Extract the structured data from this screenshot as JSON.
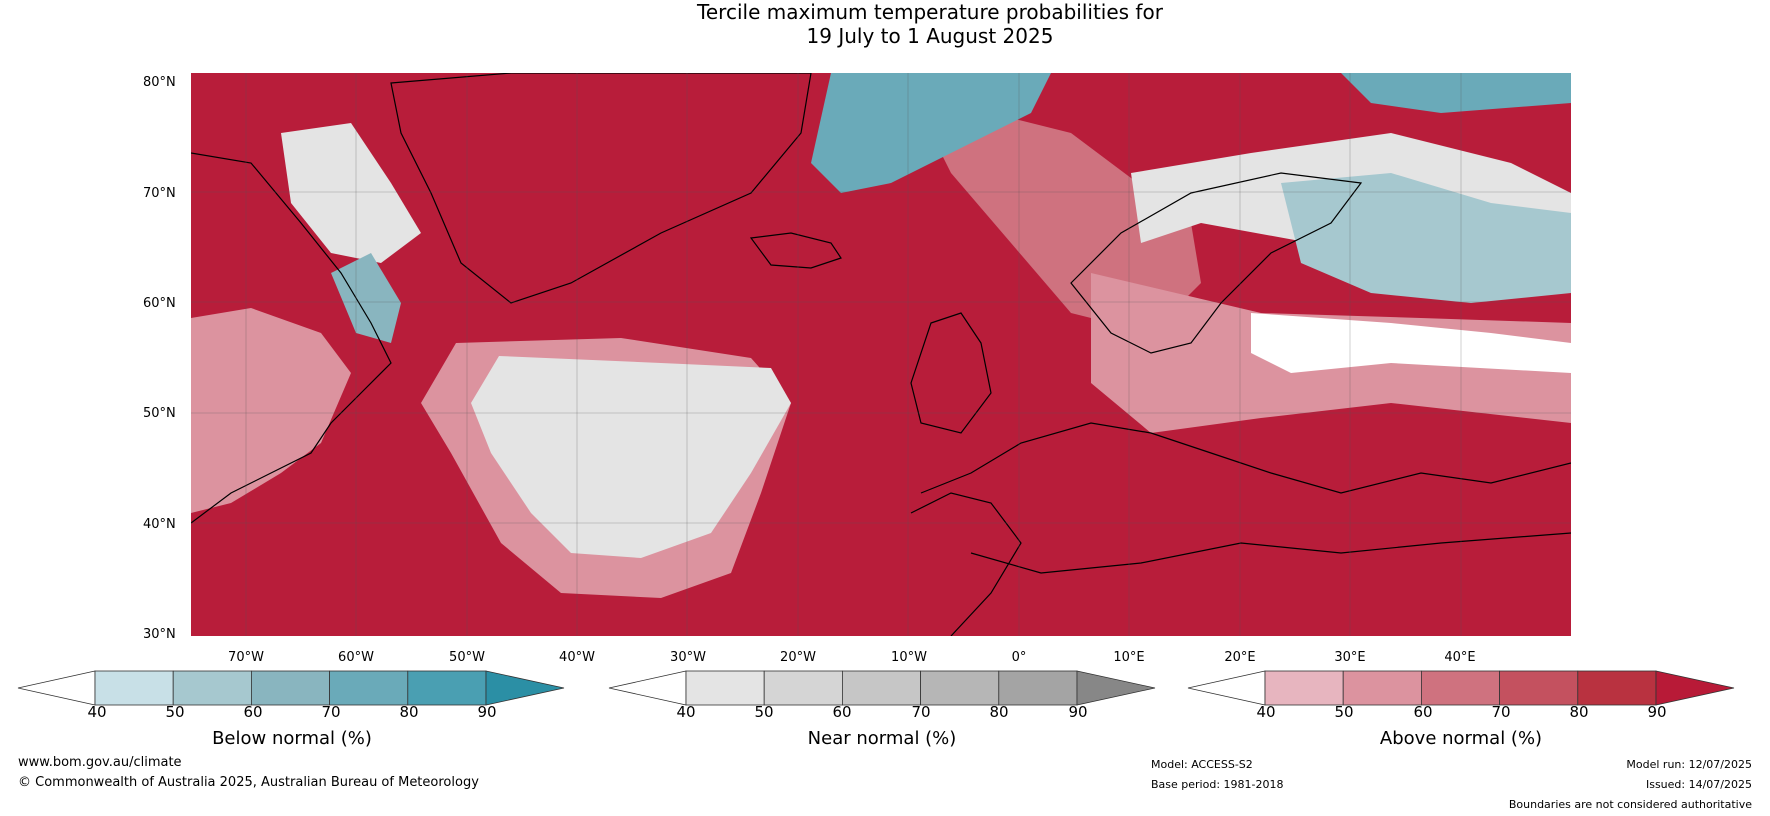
{
  "title_line1": "Tercile maximum temperature probabilities for",
  "title_line2": "19 July to 1 August 2025",
  "lat_labels": [
    "80°N",
    "70°N",
    "60°N",
    "50°N",
    "40°N",
    "30°N"
  ],
  "lon_labels": [
    "70°W",
    "60°W",
    "50°W",
    "40°W",
    "30°W",
    "20°W",
    "10°W",
    "0°",
    "10°E",
    "20°E",
    "30°E",
    "40°E"
  ],
  "colorbars": [
    {
      "label": "Below normal (%)",
      "ticks": [
        "40",
        "50",
        "60",
        "70",
        "80",
        "90"
      ],
      "colors": [
        "#ffffff",
        "#c8e0e7",
        "#a6c8cf",
        "#89b5bf",
        "#6aaab9",
        "#4a9fb2",
        "#2b8fa5"
      ]
    },
    {
      "label": "Near normal (%)",
      "ticks": [
        "40",
        "50",
        "60",
        "70",
        "80",
        "90"
      ],
      "colors": [
        "#ffffff",
        "#e4e4e4",
        "#d5d5d5",
        "#c6c6c6",
        "#b6b6b6",
        "#a4a4a4",
        "#878787"
      ]
    },
    {
      "label": "Above normal (%)",
      "ticks": [
        "40",
        "50",
        "60",
        "70",
        "80",
        "90"
      ],
      "colors": [
        "#ffffff",
        "#e7b5bf",
        "#dc939f",
        "#cf727f",
        "#c4515f",
        "#b93240",
        "#b81a37"
      ]
    }
  ],
  "footer": {
    "website": "www.bom.gov.au/climate",
    "copyright": "© Commonwealth of Australia 2025, Australian Bureau of Meteorology",
    "model": "Model: ACCESS-S2",
    "base_period": "Base period: 1981-2018",
    "model_run": "Model run: 12/07/2025",
    "issued": "Issued: 14/07/2025",
    "disclaimer": "Boundaries are not considered authoritative"
  }
}
